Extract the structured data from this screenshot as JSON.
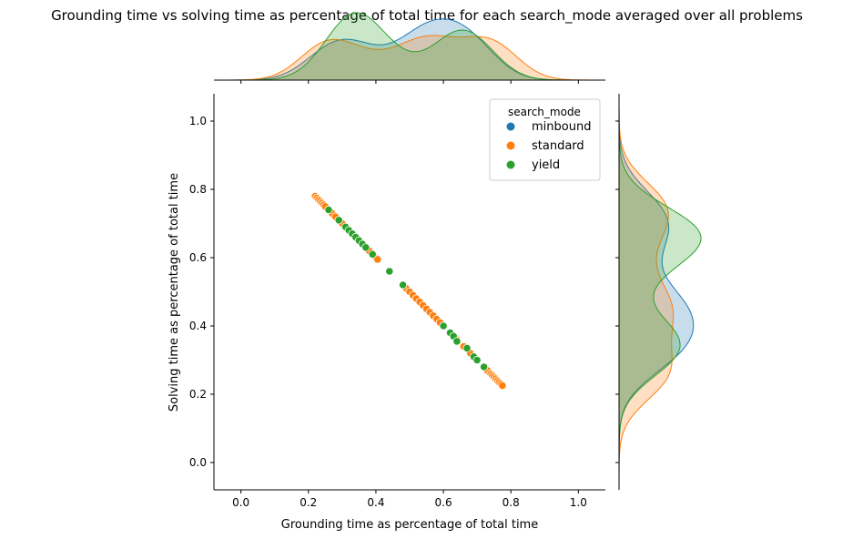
{
  "chart_data": {
    "type": "scatter",
    "title": "Grounding time vs solving time as percentage of total time for each search_mode averaged over all problems",
    "xlabel": "Grounding time as percentage of total time",
    "ylabel": "Solving time as percentage of total time",
    "xlim": [
      -0.08,
      1.08
    ],
    "ylim": [
      -0.08,
      1.08
    ],
    "xticks": [
      "0.0",
      "0.2",
      "0.4",
      "0.6",
      "0.8",
      "1.0"
    ],
    "yticks": [
      "0.0",
      "0.2",
      "0.4",
      "0.6",
      "0.8",
      "1.0"
    ],
    "grid": false,
    "legend": {
      "title": "search_mode",
      "position": "top-right"
    },
    "marginals": {
      "top": "kde of x by search_mode",
      "right": "kde of y by search_mode"
    },
    "series": [
      {
        "name": "minbound",
        "color": "#1f77b4",
        "x": [
          0.23,
          0.25,
          0.28,
          0.3,
          0.33,
          0.36,
          0.38,
          0.48,
          0.5,
          0.52,
          0.54,
          0.56,
          0.58,
          0.6,
          0.62,
          0.64,
          0.66,
          0.68,
          0.7,
          0.72
        ],
        "y": [
          0.77,
          0.75,
          0.72,
          0.7,
          0.67,
          0.64,
          0.62,
          0.52,
          0.5,
          0.48,
          0.46,
          0.44,
          0.42,
          0.4,
          0.38,
          0.36,
          0.34,
          0.32,
          0.3,
          0.28
        ]
      },
      {
        "name": "standard",
        "color": "#ff7f0e",
        "x": [
          0.22,
          0.225,
          0.23,
          0.235,
          0.24,
          0.245,
          0.25,
          0.26,
          0.27,
          0.28,
          0.3,
          0.32,
          0.34,
          0.36,
          0.38,
          0.4,
          0.405,
          0.48,
          0.49,
          0.5,
          0.51,
          0.52,
          0.53,
          0.54,
          0.55,
          0.56,
          0.57,
          0.58,
          0.59,
          0.6,
          0.62,
          0.64,
          0.66,
          0.68,
          0.7,
          0.72,
          0.73,
          0.74,
          0.745,
          0.75,
          0.755,
          0.76,
          0.765,
          0.77,
          0.775
        ],
        "y": [
          0.78,
          0.775,
          0.77,
          0.765,
          0.76,
          0.755,
          0.75,
          0.74,
          0.73,
          0.72,
          0.7,
          0.68,
          0.66,
          0.64,
          0.62,
          0.6,
          0.595,
          0.52,
          0.51,
          0.5,
          0.49,
          0.48,
          0.47,
          0.46,
          0.45,
          0.44,
          0.43,
          0.42,
          0.41,
          0.4,
          0.38,
          0.36,
          0.34,
          0.32,
          0.3,
          0.28,
          0.27,
          0.26,
          0.255,
          0.25,
          0.245,
          0.24,
          0.235,
          0.23,
          0.225
        ]
      },
      {
        "name": "yield",
        "color": "#2ca02c",
        "x": [
          0.26,
          0.29,
          0.31,
          0.32,
          0.33,
          0.34,
          0.35,
          0.36,
          0.37,
          0.39,
          0.44,
          0.48,
          0.6,
          0.62,
          0.63,
          0.64,
          0.67,
          0.69,
          0.7,
          0.72
        ],
        "y": [
          0.74,
          0.71,
          0.69,
          0.68,
          0.67,
          0.66,
          0.65,
          0.64,
          0.63,
          0.61,
          0.56,
          0.52,
          0.4,
          0.38,
          0.37,
          0.355,
          0.335,
          0.31,
          0.3,
          0.28
        ]
      }
    ]
  }
}
